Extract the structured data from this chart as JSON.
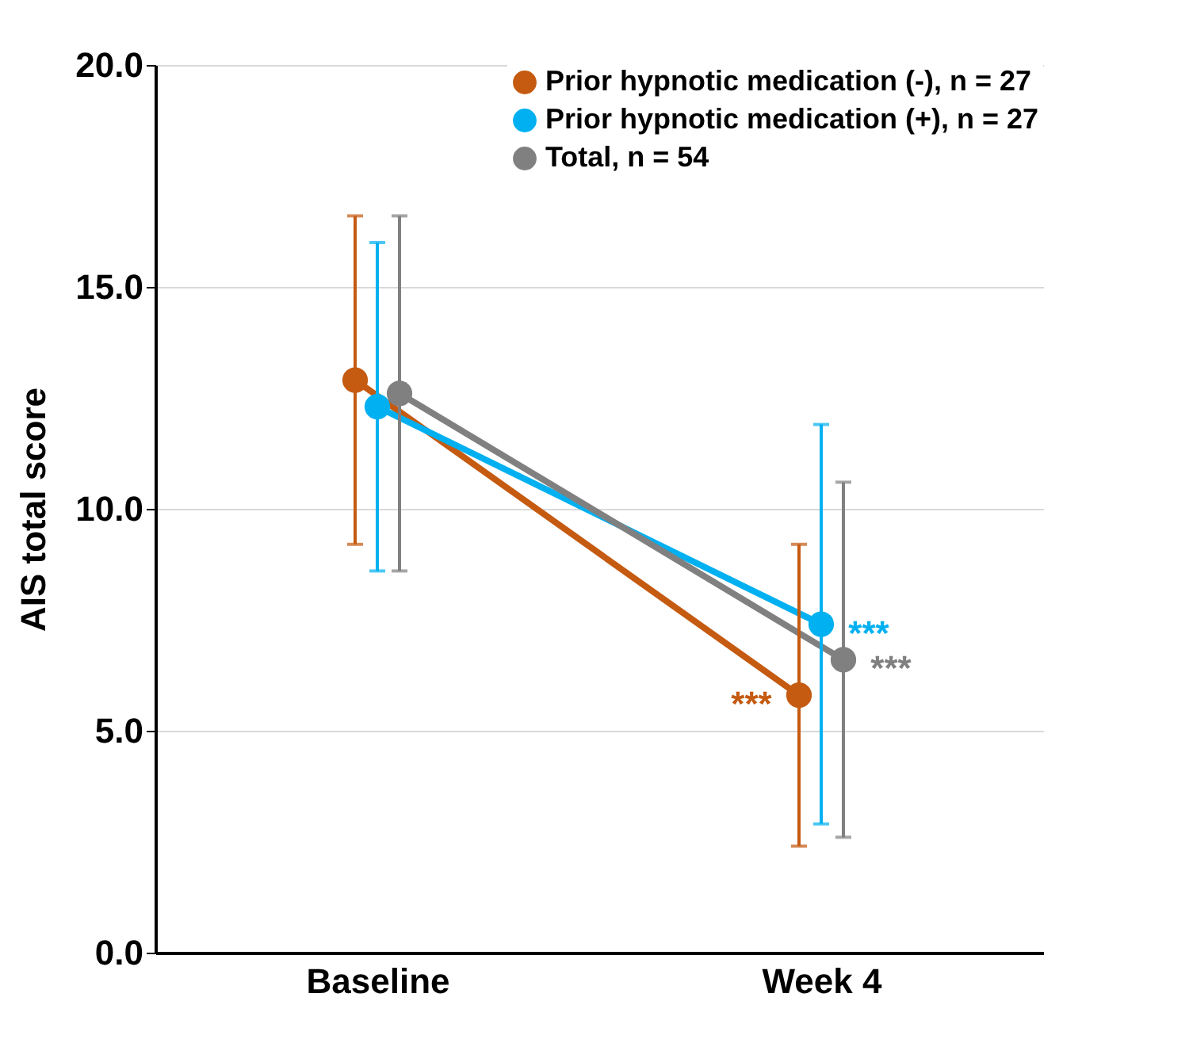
{
  "chart_data": {
    "type": "line",
    "ylabel": "AIS total score",
    "categories": [
      "Baseline",
      "Week 4"
    ],
    "series": [
      {
        "name": "Prior hypnotic medication (-), n = 27",
        "color": "#c55a11",
        "values": [
          12.9,
          5.8
        ],
        "errors": [
          [
            9.2,
            16.6
          ],
          [
            2.4,
            9.2
          ]
        ]
      },
      {
        "name": "Prior hypnotic medication (+), n = 27",
        "color": "#00b0f0",
        "values": [
          12.3,
          7.4
        ],
        "errors": [
          [
            8.6,
            16.0
          ],
          [
            2.9,
            11.9
          ]
        ]
      },
      {
        "name": "Total, n = 54",
        "color": "#808080",
        "values": [
          12.6,
          6.6
        ],
        "errors": [
          [
            8.6,
            16.6
          ],
          [
            2.6,
            10.6
          ]
        ]
      }
    ],
    "ylim": [
      0,
      20
    ],
    "yticks": [
      {
        "value": 0,
        "label": "0.0"
      },
      {
        "value": 5,
        "label": "5.0"
      },
      {
        "value": 10,
        "label": "10.0"
      },
      {
        "value": 15,
        "label": "15.0"
      },
      {
        "value": 20,
        "label": "20.0"
      }
    ],
    "grid": "y",
    "legend": "top right",
    "marker": "circle",
    "line_style": "solid",
    "annotations": [
      {
        "text": "***",
        "x": "Week 4",
        "y": 5.8
      },
      {
        "text": "***",
        "x": "Week 4",
        "y": 7.4
      },
      {
        "text": "***",
        "x": "Week 4",
        "y": 6.6
      }
    ]
  }
}
